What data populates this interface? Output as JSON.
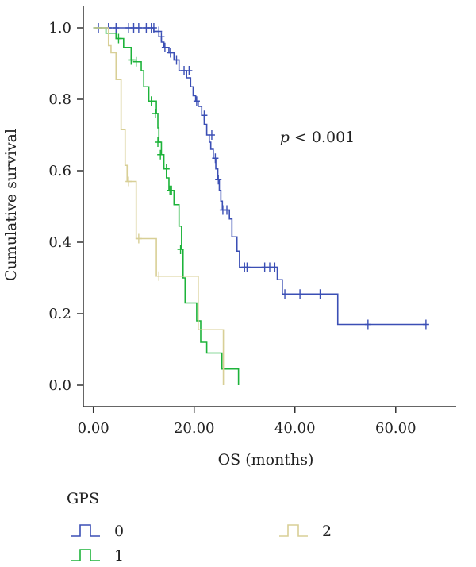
{
  "chart_data": {
    "type": "line",
    "title": "",
    "xlabel": "OS (months)",
    "ylabel": "Cumulative survival",
    "xlim": [
      -2,
      72
    ],
    "ylim": [
      -0.06,
      1.06
    ],
    "x_ticks": [
      0,
      20,
      40,
      60
    ],
    "x_tick_labels": [
      "0.00",
      "20.00",
      "40.00",
      "60.00"
    ],
    "y_ticks": [
      0.0,
      0.2,
      0.4,
      0.6,
      0.8,
      1.0
    ],
    "y_tick_labels": [
      "0.0",
      "0.2",
      "0.4",
      "0.6",
      "0.8",
      "1.0"
    ],
    "annotation": {
      "prefix": "p",
      "text": " < 0.001",
      "x": 37,
      "y": 0.68
    },
    "legend": {
      "title": "GPS",
      "position": "bottom"
    },
    "series": [
      {
        "name": "0",
        "color": "#3b4fb5",
        "steps": [
          [
            0,
            1.0
          ],
          [
            12,
            0.99
          ],
          [
            13,
            0.975
          ],
          [
            13.5,
            0.96
          ],
          [
            14,
            0.945
          ],
          [
            15,
            0.93
          ],
          [
            16,
            0.91
          ],
          [
            17,
            0.88
          ],
          [
            18.5,
            0.86
          ],
          [
            19.3,
            0.835
          ],
          [
            19.8,
            0.81
          ],
          [
            20.3,
            0.795
          ],
          [
            20.8,
            0.78
          ],
          [
            21.5,
            0.755
          ],
          [
            22,
            0.73
          ],
          [
            22.5,
            0.7
          ],
          [
            23,
            0.68
          ],
          [
            23.3,
            0.66
          ],
          [
            23.8,
            0.635
          ],
          [
            24.3,
            0.605
          ],
          [
            24.7,
            0.575
          ],
          [
            25,
            0.545
          ],
          [
            25.3,
            0.515
          ],
          [
            25.6,
            0.49
          ],
          [
            27,
            0.465
          ],
          [
            27.5,
            0.415
          ],
          [
            28.5,
            0.375
          ],
          [
            29,
            0.33
          ],
          [
            36.5,
            0.295
          ],
          [
            37.5,
            0.255
          ],
          [
            48.5,
            0.17
          ]
        ],
        "end_x": 66,
        "censored": [
          [
            1,
            1.0
          ],
          [
            3,
            1.0
          ],
          [
            4.5,
            1.0
          ],
          [
            7,
            1.0
          ],
          [
            8,
            1.0
          ],
          [
            9,
            1.0
          ],
          [
            10.5,
            1.0
          ],
          [
            11.5,
            1.0
          ],
          [
            12,
            1.0
          ],
          [
            13,
            0.99
          ],
          [
            13.5,
            0.975
          ],
          [
            14.2,
            0.945
          ],
          [
            15.3,
            0.93
          ],
          [
            16.5,
            0.91
          ],
          [
            18,
            0.88
          ],
          [
            19,
            0.88
          ],
          [
            20.5,
            0.795
          ],
          [
            22,
            0.755
          ],
          [
            23.5,
            0.7
          ],
          [
            24.2,
            0.635
          ],
          [
            24.8,
            0.575
          ],
          [
            25.7,
            0.49
          ],
          [
            26.5,
            0.49
          ],
          [
            30,
            0.33
          ],
          [
            30.5,
            0.33
          ],
          [
            34,
            0.33
          ],
          [
            35,
            0.33
          ],
          [
            36,
            0.33
          ],
          [
            38,
            0.255
          ],
          [
            41,
            0.255
          ],
          [
            45,
            0.255
          ],
          [
            54.5,
            0.17
          ],
          [
            66,
            0.17
          ]
        ]
      },
      {
        "name": "1",
        "color": "#1db33a",
        "steps": [
          [
            0,
            1.0
          ],
          [
            2.5,
            0.985
          ],
          [
            4.5,
            0.97
          ],
          [
            6,
            0.945
          ],
          [
            7.5,
            0.91
          ],
          [
            8.5,
            0.905
          ],
          [
            9.5,
            0.88
          ],
          [
            10,
            0.835
          ],
          [
            11,
            0.795
          ],
          [
            12.5,
            0.76
          ],
          [
            12.8,
            0.72
          ],
          [
            13,
            0.68
          ],
          [
            13.5,
            0.645
          ],
          [
            14,
            0.605
          ],
          [
            14.5,
            0.58
          ],
          [
            15,
            0.545
          ],
          [
            16,
            0.505
          ],
          [
            17,
            0.445
          ],
          [
            17.5,
            0.38
          ],
          [
            17.8,
            0.3
          ],
          [
            18.2,
            0.23
          ],
          [
            20.5,
            0.18
          ],
          [
            21.3,
            0.12
          ],
          [
            22.5,
            0.09
          ],
          [
            25.5,
            0.045
          ],
          [
            28.8,
            0.0
          ]
        ],
        "end_x": 28.8,
        "censored": [
          [
            3,
            0.985
          ],
          [
            5,
            0.97
          ],
          [
            7.5,
            0.91
          ],
          [
            8.5,
            0.905
          ],
          [
            11.5,
            0.795
          ],
          [
            12.3,
            0.76
          ],
          [
            12.8,
            0.68
          ],
          [
            13.3,
            0.645
          ],
          [
            14.5,
            0.605
          ],
          [
            15.2,
            0.545
          ],
          [
            15.5,
            0.545
          ],
          [
            17.3,
            0.38
          ]
        ]
      },
      {
        "name": "2",
        "color": "#d8cf96",
        "steps": [
          [
            0,
            1.0
          ],
          [
            3,
            0.95
          ],
          [
            3.5,
            0.93
          ],
          [
            4.5,
            0.855
          ],
          [
            5.5,
            0.715
          ],
          [
            6.3,
            0.615
          ],
          [
            6.7,
            0.57
          ],
          [
            8.5,
            0.41
          ],
          [
            12.5,
            0.305
          ],
          [
            20.8,
            0.155
          ],
          [
            25.8,
            0.0
          ]
        ],
        "end_x": 25.8,
        "censored": [
          [
            7,
            0.57
          ],
          [
            9,
            0.41
          ],
          [
            13,
            0.305
          ]
        ]
      }
    ]
  }
}
